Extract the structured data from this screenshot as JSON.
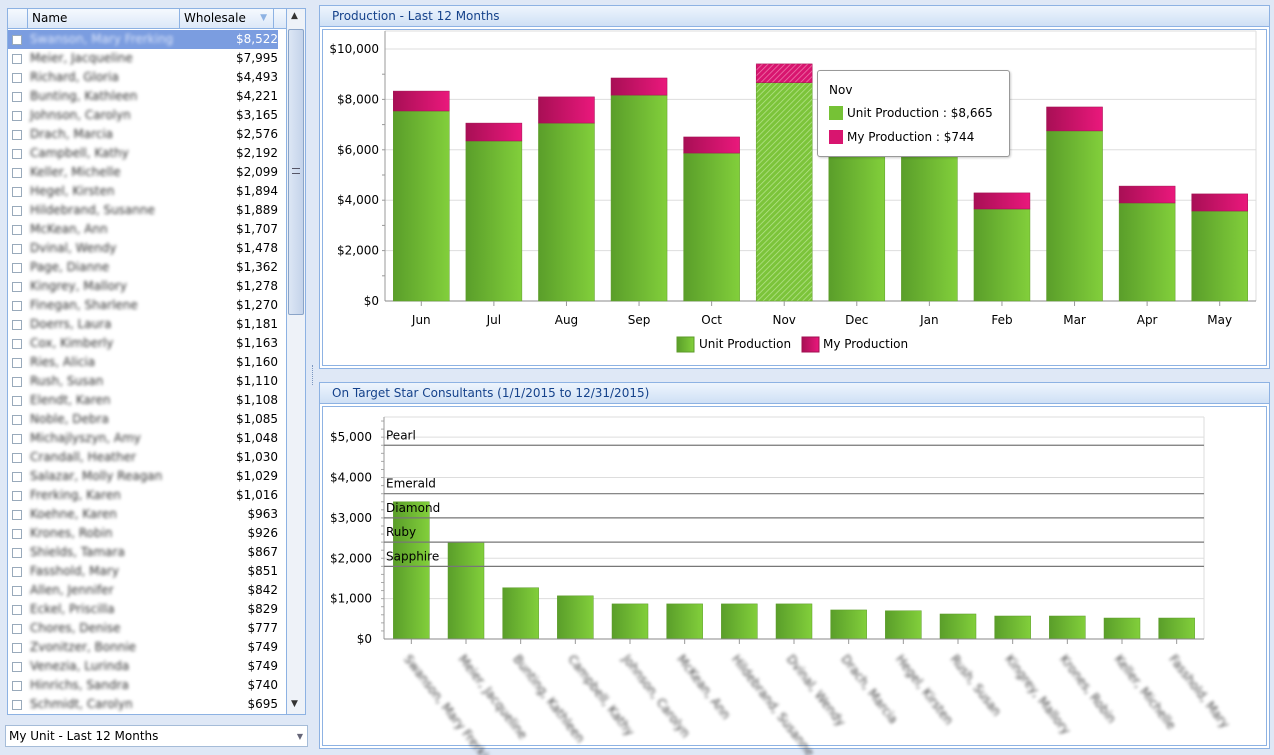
{
  "grid": {
    "columns": [
      "Name",
      "Wholesale"
    ],
    "rows": [
      [
        "Swanson, Mary Frerking",
        "$8,522"
      ],
      [
        "Meier, Jacqueline",
        "$7,995"
      ],
      [
        "Richard, Gloria",
        "$4,493"
      ],
      [
        "Bunting, Kathleen",
        "$4,221"
      ],
      [
        "Johnson, Carolyn",
        "$3,165"
      ],
      [
        "Drach, Marcia",
        "$2,576"
      ],
      [
        "Campbell, Kathy",
        "$2,192"
      ],
      [
        "Keller, Michelle",
        "$2,099"
      ],
      [
        "Hegel, Kirsten",
        "$1,894"
      ],
      [
        "Hildebrand, Susanne",
        "$1,889"
      ],
      [
        "McKean, Ann",
        "$1,707"
      ],
      [
        "Dvinal, Wendy",
        "$1,478"
      ],
      [
        "Page, Dianne",
        "$1,362"
      ],
      [
        "Kingrey, Mallory",
        "$1,278"
      ],
      [
        "Finegan, Sharlene",
        "$1,270"
      ],
      [
        "Doerrs, Laura",
        "$1,181"
      ],
      [
        "Cox, Kimberly",
        "$1,163"
      ],
      [
        "Ries, Alicia",
        "$1,160"
      ],
      [
        "Rush, Susan",
        "$1,110"
      ],
      [
        "Elendt, Karen",
        "$1,108"
      ],
      [
        "Noble, Debra",
        "$1,085"
      ],
      [
        "Michajlyszyn, Amy",
        "$1,048"
      ],
      [
        "Crandall, Heather",
        "$1,030"
      ],
      [
        "Salazar, Molly Reagan",
        "$1,029"
      ],
      [
        "Frerking, Karen",
        "$1,016"
      ],
      [
        "Koehne, Karen",
        "$963"
      ],
      [
        "Krones, Robin",
        "$926"
      ],
      [
        "Shields, Tamara",
        "$867"
      ],
      [
        "Fasshold, Mary",
        "$851"
      ],
      [
        "Allen, Jennifer",
        "$842"
      ],
      [
        "Eckel, Priscilla",
        "$829"
      ],
      [
        "Chores, Denise",
        "$777"
      ],
      [
        "Zvonitzer, Bonnie",
        "$749"
      ],
      [
        "Venezia, Lurinda",
        "$749"
      ],
      [
        "Hinrichs, Sandra",
        "$740"
      ],
      [
        "Schmidt, Carolyn",
        "$695"
      ]
    ],
    "selected_index": 0
  },
  "combo": {
    "value": "My Unit - Last 12 Months"
  },
  "colors": {
    "green": "#76c236",
    "pink": "#d8156f",
    "header_text": "#15428b",
    "selection": "#7b9de0"
  },
  "chart_data": [
    {
      "type": "bar",
      "stacked": true,
      "title": "Production - Last 12 Months",
      "categories": [
        "Jun",
        "Jul",
        "Aug",
        "Sep",
        "Oct",
        "Nov",
        "Dec",
        "Jan",
        "Feb",
        "Mar",
        "Apr",
        "May"
      ],
      "series": [
        {
          "name": "Unit Production",
          "values": [
            7540,
            6350,
            7060,
            8170,
            5870,
            8665,
            6500,
            6200,
            3650,
            6750,
            3890,
            3570
          ]
        },
        {
          "name": "My Production",
          "values": [
            790,
            710,
            1040,
            680,
            640,
            744,
            600,
            700,
            640,
            950,
            670,
            680
          ]
        }
      ],
      "yticks": [
        "$0",
        "$2,000",
        "$4,000",
        "$6,000",
        "$8,000",
        "$10,000"
      ],
      "ylim": [
        0,
        10000
      ],
      "grid": true,
      "legend": "bottom-center",
      "tooltip": {
        "title": "Nov",
        "lines": [
          "Unit Production : $8,665",
          "My Production : $744"
        ]
      },
      "highlighted": "Nov"
    },
    {
      "type": "bar",
      "title": "On Target Star Consultants (1/1/2015 to 12/31/2015)",
      "categories": [
        "Swanson, Mary Frerking",
        "Meier, Jacqueline",
        "Bunting, Kathleen",
        "Campbell, Kathy",
        "Johnson, Carolyn",
        "McKean, Ann",
        "Hildebrand, Susanne",
        "Dvinal, Wendy",
        "Drach, Marcia",
        "Hegel, Kirsten",
        "Rush, Susan",
        "Kingrey, Mallory",
        "Krones, Robin",
        "Keller, Michelle",
        "Fasshold, Mary"
      ],
      "values": [
        3400,
        2400,
        1270,
        1070,
        870,
        870,
        870,
        870,
        720,
        700,
        620,
        570,
        570,
        520,
        520
      ],
      "yticks": [
        "$0",
        "$1,000",
        "$2,000",
        "$3,000",
        "$4,000",
        "$5,000"
      ],
      "ylim": [
        0,
        5500
      ],
      "grid": true,
      "thresholds": [
        {
          "label": "Pearl",
          "value": 4800
        },
        {
          "label": "Emerald",
          "value": 3600
        },
        {
          "label": "Diamond",
          "value": 3000
        },
        {
          "label": "Ruby",
          "value": 2400
        },
        {
          "label": "Sapphire",
          "value": 1800
        }
      ]
    }
  ]
}
